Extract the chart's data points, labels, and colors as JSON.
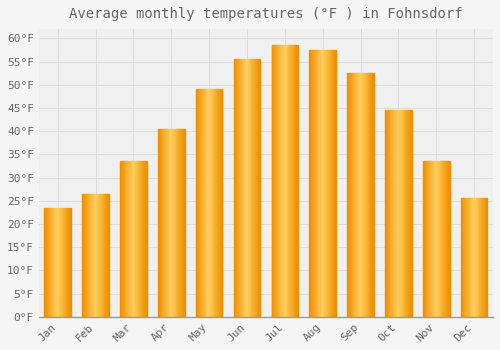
{
  "title": "Average monthly temperatures (°F ) in Fohnsdorf",
  "months": [
    "Jan",
    "Feb",
    "Mar",
    "Apr",
    "May",
    "Jun",
    "Jul",
    "Aug",
    "Sep",
    "Oct",
    "Nov",
    "Dec"
  ],
  "values": [
    23.5,
    26.5,
    33.5,
    40.5,
    49.0,
    55.5,
    58.5,
    57.5,
    52.5,
    44.5,
    33.5,
    25.5
  ],
  "bar_color_center": "#FFD060",
  "bar_color_edge": "#F0A000",
  "background_color": "#F5F5F5",
  "plot_bg_color": "#F0F0F0",
  "grid_color": "#DDDDDD",
  "text_color": "#666666",
  "axis_color": "#999999",
  "ylim": [
    0,
    62
  ],
  "yticks": [
    0,
    5,
    10,
    15,
    20,
    25,
    30,
    35,
    40,
    45,
    50,
    55,
    60
  ],
  "title_fontsize": 10,
  "tick_fontsize": 8,
  "font_family": "monospace"
}
